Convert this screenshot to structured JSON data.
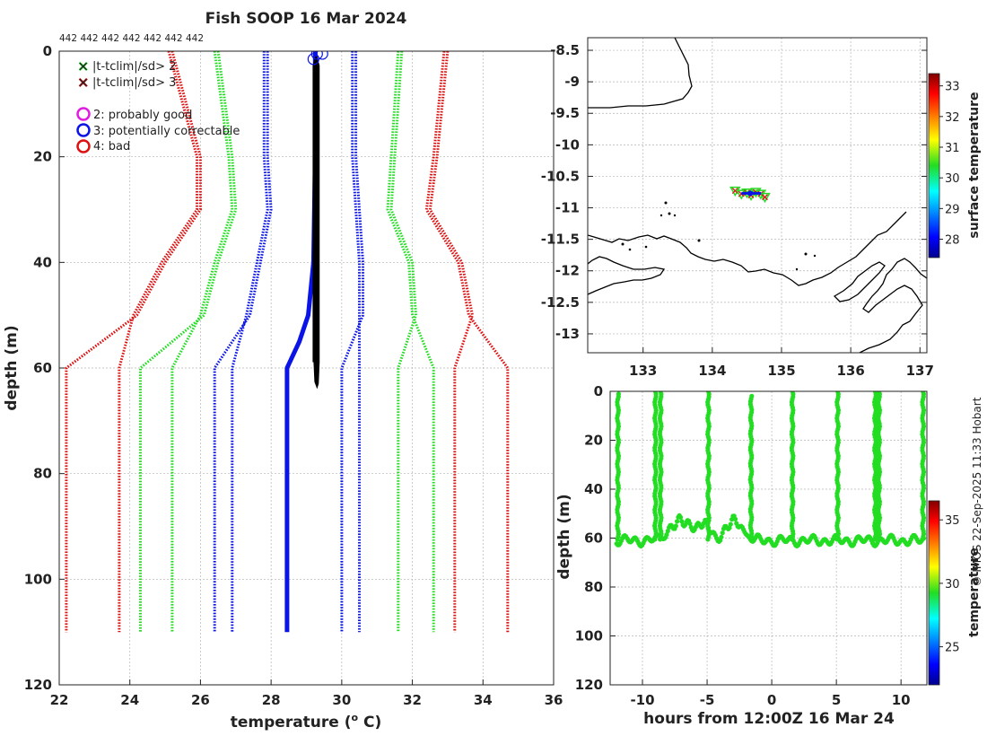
{
  "figure_title": "Fish SOOP 16 Mar 2024",
  "credit": "© IMOS 22-Sep-2025 11:33 Hobart",
  "colors": {
    "blue": "#0a14e6",
    "green": "#22dd22",
    "red": "#dd1111",
    "magenta": "#e01ee0",
    "black": "#000000",
    "grid": "#b5b5b5",
    "axis": "#222222"
  },
  "chart_data": [
    {
      "type": "line",
      "id": "profile",
      "title": "Fish SOOP 16 Mar 2024",
      "xlabel": "temperature (",
      "xlabel_sup": "o",
      "xlabel_end": " C)",
      "ylabel": "depth (m)",
      "xlim": [
        22,
        36
      ],
      "ylim": [
        120,
        0
      ],
      "xticks": [
        "22",
        "24",
        "26",
        "28",
        "30",
        "32",
        "34",
        "36"
      ],
      "yticks": [
        "0",
        "20",
        "40",
        "60",
        "80",
        "100",
        "120"
      ],
      "count_labels": [
        "442",
        "442",
        "442",
        "442",
        "442",
        "442",
        "442"
      ],
      "legend": [
        {
          "marker": "x",
          "color": "#22dd22",
          "label": "|t-tclim|/sd> 2"
        },
        {
          "marker": "x",
          "color": "#dd1111",
          "label": "|t-tclim|/sd> 3"
        },
        {
          "marker": "o",
          "color": "#e01ee0",
          "label": "2: probably good"
        },
        {
          "marker": "o",
          "color": "#0a14e6",
          "label": "3: potentially correctable"
        },
        {
          "marker": "o",
          "color": "#dd1111",
          "label": "4: bad"
        }
      ],
      "series": [
        {
          "name": "red-left",
          "color": "#dd1111",
          "style": "dotted",
          "pairs": [
            [
              0,
              25.2,
              25.1
            ],
            [
              20,
              26.0,
              25.9
            ],
            [
              30,
              26.0,
              25.9
            ],
            [
              40,
              25.0,
              24.9
            ],
            [
              50,
              24.2,
              24.1
            ],
            [
              60,
              22.2,
              23.7
            ],
            [
              110,
              22.2,
              23.7
            ]
          ]
        },
        {
          "name": "green-left",
          "color": "#22dd22",
          "style": "dotted",
          "pairs": [
            [
              0,
              26.5,
              26.4
            ],
            [
              20,
              26.9,
              26.8
            ],
            [
              30,
              27.0,
              26.9
            ],
            [
              40,
              26.5,
              26.4
            ],
            [
              50,
              26.1,
              26.0
            ],
            [
              60,
              24.3,
              25.2
            ],
            [
              110,
              24.3,
              25.2
            ]
          ]
        },
        {
          "name": "blue-left",
          "color": "#0a14e6",
          "style": "dotted",
          "pairs": [
            [
              0,
              27.9,
              27.8
            ],
            [
              20,
              27.9,
              27.8
            ],
            [
              30,
              28.0,
              27.9
            ],
            [
              40,
              27.7,
              27.6
            ],
            [
              50,
              27.4,
              27.3
            ],
            [
              60,
              26.4,
              26.9
            ],
            [
              110,
              26.4,
              26.9
            ]
          ]
        },
        {
          "name": "blue-right",
          "color": "#0a14e6",
          "style": "dotted",
          "pairs": [
            [
              0,
              30.4,
              30.3
            ],
            [
              20,
              30.4,
              30.3
            ],
            [
              30,
              30.5,
              30.4
            ],
            [
              40,
              30.6,
              30.5
            ],
            [
              50,
              30.6,
              30.5
            ],
            [
              60,
              30.0,
              30.5
            ],
            [
              110,
              30.0,
              30.5
            ]
          ]
        },
        {
          "name": "green-right",
          "color": "#22dd22",
          "style": "dotted",
          "pairs": [
            [
              0,
              31.7,
              31.6
            ],
            [
              20,
              31.5,
              31.4
            ],
            [
              30,
              31.4,
              31.3
            ],
            [
              40,
              32.0,
              31.9
            ],
            [
              50,
              32.1,
              32.0
            ],
            [
              60,
              31.6,
              32.6
            ],
            [
              110,
              31.6,
              32.6
            ]
          ]
        },
        {
          "name": "red-right",
          "color": "#dd1111",
          "style": "dotted",
          "pairs": [
            [
              0,
              33.0,
              32.9
            ],
            [
              20,
              32.7,
              32.6
            ],
            [
              30,
              32.5,
              32.4
            ],
            [
              40,
              33.4,
              33.3
            ],
            [
              50,
              33.7,
              33.6
            ],
            [
              60,
              33.2,
              34.7
            ],
            [
              110,
              33.2,
              34.7
            ]
          ]
        }
      ],
      "climatology_profile": {
        "color": "#0a14e6",
        "depth": [
          0,
          10,
          20,
          40,
          50,
          55,
          60,
          110
        ],
        "temp": [
          29.25,
          29.25,
          29.25,
          29.2,
          29.05,
          28.8,
          28.45,
          28.45
        ]
      },
      "measured_profile": {
        "color": "#000000",
        "depth_range": [
          1,
          64
        ],
        "temp_range": [
          29.15,
          29.4
        ]
      },
      "flag_markers": [
        {
          "temp": 29.3,
          "depth": 0.5
        },
        {
          "temp": 29.45,
          "depth": 0.5
        },
        {
          "temp": 29.2,
          "depth": 1.5
        }
      ]
    },
    {
      "type": "scatter",
      "id": "map",
      "xlim": [
        132.2,
        137.1
      ],
      "ylim": [
        -13.3,
        -8.3
      ],
      "xticks": [
        "133",
        "134",
        "135",
        "136",
        "137"
      ],
      "yticks": [
        "-8.5",
        "-9",
        "-9.5",
        "-10",
        "-10.5",
        "-11",
        "-11.5",
        "-12",
        "-12.5",
        "-13"
      ],
      "colorbar_label": "surface temperature",
      "colorbar_ticks": [
        "28",
        "29",
        "30",
        "31",
        "32",
        "33"
      ],
      "colorbar_range": [
        27.4,
        33.4
      ],
      "track": {
        "lon": [
          134.33,
          134.42,
          134.5,
          134.56,
          134.63,
          134.7,
          134.76
        ],
        "lat": [
          -10.73,
          -10.78,
          -10.76,
          -10.8,
          -10.75,
          -10.78,
          -10.83
        ]
      }
    },
    {
      "type": "scatter",
      "id": "depth_time",
      "xlabel": "hours from 12:00Z 16 Mar 24",
      "ylabel": "depth (m)",
      "xlim": [
        -12.5,
        12
      ],
      "ylim": [
        120,
        0
      ],
      "xticks": [
        "-10",
        "-5",
        "0",
        "5",
        "10"
      ],
      "yticks": [
        "0",
        "20",
        "40",
        "60",
        "80",
        "100",
        "120"
      ],
      "colorbar_label": "temperature",
      "colorbar_ticks": [
        "25",
        "30",
        "35"
      ],
      "colorbar_range": [
        22,
        36.5
      ],
      "casts": [
        -11.9,
        -9.0,
        -8.6,
        -4.9,
        -1.6,
        1.6,
        5.1,
        8.0,
        8.3,
        11.7
      ],
      "bottom_depth": 61
    }
  ]
}
